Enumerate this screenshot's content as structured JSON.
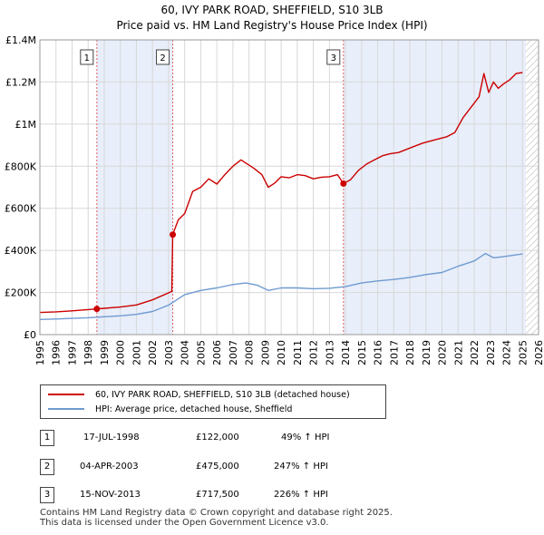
{
  "title_line1": "60, IVY PARK ROAD, SHEFFIELD, S10 3LB",
  "title_line2": "Price paid vs. HM Land Registry's House Price Index (HPI)",
  "chart_data": {
    "type": "line",
    "title": "60, IVY PARK ROAD, SHEFFIELD, S10 3LB",
    "subtitle": "Price paid vs. HM Land Registry's House Price Index (HPI)",
    "xlim": [
      1995,
      2026
    ],
    "ylim": [
      0,
      1400000
    ],
    "y_ticks": [
      0,
      200000,
      400000,
      600000,
      800000,
      1000000,
      1200000,
      1400000
    ],
    "y_tick_labels": [
      "£0",
      "£200K",
      "£400K",
      "£600K",
      "£800K",
      "£1M",
      "£1.2M",
      "£1.4M"
    ],
    "x_ticks": [
      1995,
      1996,
      1997,
      1998,
      1999,
      2000,
      2001,
      2002,
      2003,
      2004,
      2005,
      2006,
      2007,
      2008,
      2009,
      2010,
      2011,
      2012,
      2013,
      2014,
      2015,
      2016,
      2017,
      2018,
      2019,
      2020,
      2021,
      2022,
      2023,
      2024,
      2025,
      2026
    ],
    "x_tick_labels": [
      "1995",
      "1996",
      "1997",
      "1998",
      "1999",
      "2000",
      "2001",
      "2002",
      "2003",
      "2004",
      "2005",
      "2006",
      "2007",
      "2008",
      "2009",
      "2010",
      "2011",
      "2012",
      "2013",
      "2014",
      "2015",
      "2016",
      "2017",
      "2018",
      "2019",
      "2020",
      "2021",
      "2022",
      "2023",
      "2024",
      "2025",
      "2026"
    ],
    "grid": true,
    "shaded_regions": [
      [
        1998.54,
        2003.26
      ],
      [
        2013.87,
        2025.2
      ]
    ],
    "hatched_region": [
      2025.2,
      2026
    ],
    "series": [
      {
        "name": "60, IVY PARK ROAD, SHEFFIELD, S10 3LB (detached house)",
        "color": "#cc0000",
        "x": [
          1995,
          1996,
          1997,
          1998,
          1998.54,
          1999,
          2000,
          2001,
          2002,
          2003.2,
          2003.26,
          2003.6,
          2004,
          2004.5,
          2005,
          2005.5,
          2006,
          2006.5,
          2007,
          2007.5,
          2007.8,
          2008.3,
          2008.8,
          2009.2,
          2009.6,
          2010,
          2010.5,
          2011,
          2011.5,
          2012,
          2012.5,
          2013,
          2013.5,
          2013.87,
          2014.3,
          2014.8,
          2015.3,
          2015.8,
          2016.3,
          2016.8,
          2017.3,
          2017.8,
          2018.3,
          2018.8,
          2019.3,
          2019.8,
          2020.3,
          2020.8,
          2021.3,
          2021.8,
          2022.3,
          2022.6,
          2022.9,
          2023.2,
          2023.5,
          2023.8,
          2024.2,
          2024.6,
          2025.0
        ],
        "values": [
          105000,
          108000,
          113000,
          119000,
          122000,
          125000,
          131000,
          141000,
          165000,
          205000,
          475000,
          545000,
          575000,
          680000,
          700000,
          740000,
          715000,
          760000,
          800000,
          830000,
          815000,
          790000,
          760000,
          700000,
          720000,
          750000,
          745000,
          760000,
          755000,
          740000,
          748000,
          750000,
          760000,
          717500,
          735000,
          780000,
          810000,
          830000,
          850000,
          860000,
          865000,
          880000,
          895000,
          910000,
          920000,
          930000,
          940000,
          960000,
          1030000,
          1080000,
          1130000,
          1240000,
          1150000,
          1200000,
          1170000,
          1190000,
          1210000,
          1240000,
          1245000
        ]
      },
      {
        "name": "HPI: Average price, detached house, Sheffield",
        "color": "#6f9bd1",
        "x": [
          1995,
          1996,
          1997,
          1998,
          1999,
          2000,
          2001,
          2002,
          2003,
          2004,
          2005,
          2006,
          2007,
          2007.8,
          2008.5,
          2009.2,
          2010,
          2011,
          2012,
          2013,
          2014,
          2015,
          2016,
          2017,
          2018,
          2019,
          2020,
          2021,
          2022,
          2022.7,
          2023.2,
          2023.8,
          2024.5,
          2025.0
        ],
        "values": [
          72000,
          74000,
          77000,
          80000,
          85000,
          89000,
          96000,
          110000,
          140000,
          190000,
          210000,
          222000,
          238000,
          245000,
          235000,
          210000,
          222000,
          222000,
          218000,
          220000,
          228000,
          245000,
          255000,
          262000,
          272000,
          285000,
          295000,
          325000,
          350000,
          385000,
          365000,
          370000,
          378000,
          383000
        ]
      }
    ],
    "sale_points": [
      {
        "label": "1",
        "x": 1998.54,
        "value": 122000
      },
      {
        "label": "2",
        "x": 2003.26,
        "value": 475000
      },
      {
        "label": "3",
        "x": 2013.87,
        "value": 717500
      }
    ]
  },
  "legend": {
    "items": [
      {
        "label": "60, IVY PARK ROAD, SHEFFIELD, S10 3LB (detached house)",
        "color": "#cc0000"
      },
      {
        "label": "HPI: Average price, detached house, Sheffield",
        "color": "#6f9bd1"
      }
    ]
  },
  "transactions": [
    {
      "num": "1",
      "date": "17-JUL-1998",
      "price": "£122,000",
      "hpi": "49% ↑ HPI"
    },
    {
      "num": "2",
      "date": "04-APR-2003",
      "price": "£475,000",
      "hpi": "247% ↑ HPI"
    },
    {
      "num": "3",
      "date": "15-NOV-2013",
      "price": "£717,500",
      "hpi": "226% ↑ HPI"
    }
  ],
  "footer": {
    "line1": "Contains HM Land Registry data © Crown copyright and database right 2025.",
    "line2": "This data is licensed under the Open Government Licence v3.0."
  }
}
